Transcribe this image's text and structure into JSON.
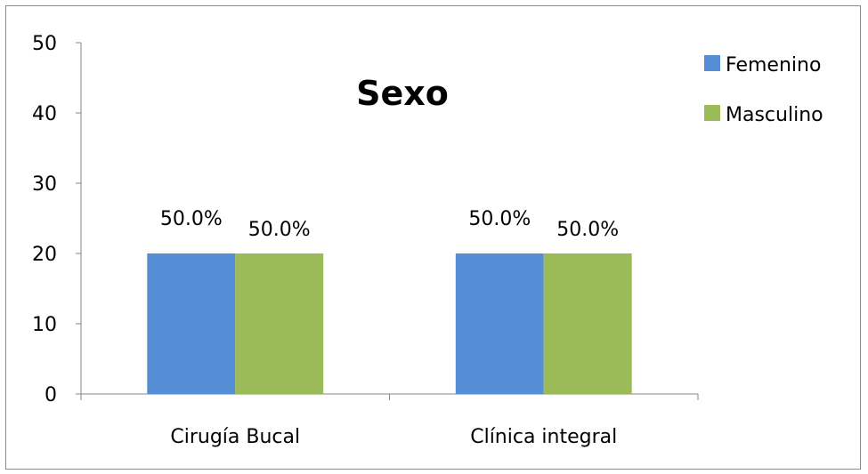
{
  "chart_data": {
    "type": "bar",
    "title": "Sexo",
    "xlabel": "",
    "ylabel": "",
    "ylim": [
      0,
      50
    ],
    "yticks": [
      0,
      10,
      20,
      30,
      40,
      50
    ],
    "categories": [
      "Cirugía Bucal",
      "Clínica integral"
    ],
    "series": [
      {
        "name": "Femenino",
        "values": [
          20,
          20
        ],
        "labels": [
          "50.0%",
          "50.0%"
        ],
        "color": "#558ed5"
      },
      {
        "name": "Masculino",
        "values": [
          20,
          20
        ],
        "labels": [
          "50.0%",
          "50.0%"
        ],
        "color": "#9bbb59"
      }
    ],
    "legend_position": "top-right",
    "grid": false
  }
}
